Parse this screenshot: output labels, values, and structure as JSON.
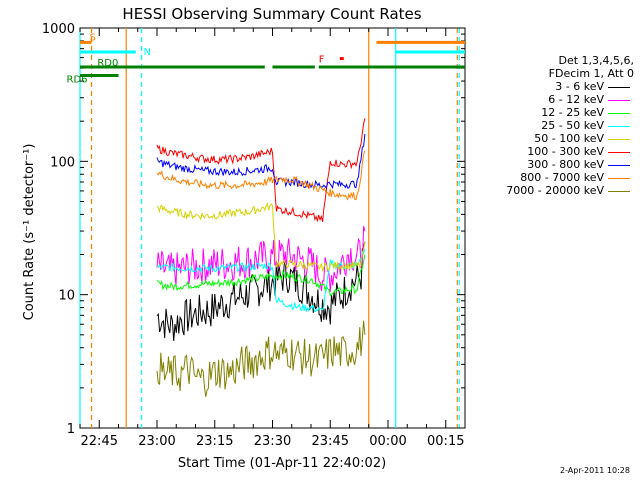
{
  "chart_data": {
    "type": "line",
    "title": "HESSI Observing Summary Count Rates",
    "xlabel": "Start Time (01-Apr-11 22:40:02)",
    "ylabel": "Count Rate (s⁻¹ detector⁻¹)",
    "x_ticks": [
      "22:45",
      "23:00",
      "23:15",
      "23:30",
      "23:45",
      "00:00",
      "00:15"
    ],
    "x_tick_minutes": [
      5,
      20,
      35,
      50,
      65,
      80,
      95
    ],
    "xlim_minutes": [
      0,
      100
    ],
    "y_scale": "log",
    "ylim": [
      1,
      1000
    ],
    "y_ticks": [
      "1",
      "10",
      "100",
      "1000"
    ],
    "y_tick_values": [
      1,
      10,
      100,
      1000
    ],
    "legend_header": [
      "Det 1,3,4,5,6,",
      "FDecim 1, Att 0"
    ],
    "legend_placement": "right, outside plot",
    "series": [
      {
        "name": "3 - 6 keV",
        "color": "#000000",
        "points": [
          [
            20,
            7
          ],
          [
            22,
            6.2
          ],
          [
            24,
            5.8
          ],
          [
            26,
            6.5
          ],
          [
            28,
            6.8
          ],
          [
            30,
            7.1
          ],
          [
            32,
            7.5
          ],
          [
            34,
            7.6
          ],
          [
            36,
            8.2
          ],
          [
            38,
            8.8
          ],
          [
            40,
            9.3
          ],
          [
            42,
            9.8
          ],
          [
            45,
            10.5
          ],
          [
            48,
            11.8
          ],
          [
            50,
            12.5
          ],
          [
            52,
            13.5
          ],
          [
            54,
            14
          ],
          [
            56,
            12.5
          ],
          [
            58,
            11.5
          ],
          [
            60,
            10
          ],
          [
            63,
            8.5
          ],
          [
            65,
            8.2
          ],
          [
            66,
            9
          ],
          [
            68,
            10
          ],
          [
            70,
            12
          ],
          [
            72,
            13
          ],
          [
            73,
            14
          ],
          [
            74,
            25
          ]
        ]
      },
      {
        "name": "6 - 12 keV",
        "color": "#ff00ff",
        "points": [
          [
            20,
            16
          ],
          [
            24,
            15
          ],
          [
            28,
            16
          ],
          [
            32,
            16.5
          ],
          [
            36,
            17
          ],
          [
            40,
            17.5
          ],
          [
            44,
            18
          ],
          [
            48,
            19
          ],
          [
            50,
            19
          ],
          [
            53,
            20
          ],
          [
            56,
            19
          ],
          [
            60,
            17
          ],
          [
            63,
            14
          ],
          [
            65,
            14
          ],
          [
            67,
            16
          ],
          [
            70,
            21
          ],
          [
            72,
            19
          ],
          [
            73,
            20
          ],
          [
            74,
            30
          ]
        ]
      },
      {
        "name": "12 - 25 keV",
        "color": "#00ff00",
        "points": [
          [
            20,
            12
          ],
          [
            24,
            11.5
          ],
          [
            28,
            11.8
          ],
          [
            32,
            12
          ],
          [
            36,
            12.2
          ],
          [
            40,
            12.5
          ],
          [
            44,
            13
          ],
          [
            48,
            13.5
          ],
          [
            50,
            13.8
          ],
          [
            53,
            14
          ],
          [
            56,
            13.5
          ],
          [
            60,
            13
          ],
          [
            63,
            11.5
          ],
          [
            65,
            10.5
          ],
          [
            67,
            10.5
          ],
          [
            70,
            11
          ],
          [
            72,
            11
          ],
          [
            74,
            20
          ]
        ]
      },
      {
        "name": "25 - 50 keV",
        "color": "#00ffff",
        "points": [
          [
            20,
            16
          ],
          [
            24,
            16
          ],
          [
            28,
            15.8
          ],
          [
            32,
            15.8
          ],
          [
            36,
            15.8
          ],
          [
            40,
            16
          ],
          [
            44,
            16.2
          ],
          [
            48,
            16.5
          ],
          [
            50,
            16.5
          ],
          [
            51,
            9
          ],
          [
            54,
            8.5
          ],
          [
            57,
            8
          ],
          [
            60,
            8
          ],
          [
            63,
            7.5
          ],
          [
            65,
            17
          ],
          [
            68,
            16.5
          ],
          [
            72,
            16.5
          ],
          [
            74,
            22
          ]
        ]
      },
      {
        "name": "50 - 100 keV",
        "color": "#d4d400",
        "points": [
          [
            20,
            45
          ],
          [
            24,
            42
          ],
          [
            28,
            40
          ],
          [
            32,
            39
          ],
          [
            36,
            39.5
          ],
          [
            40,
            41
          ],
          [
            44,
            42
          ],
          [
            48,
            45
          ],
          [
            50,
            46
          ],
          [
            51,
            17
          ],
          [
            55,
            17
          ],
          [
            60,
            16.5
          ],
          [
            63,
            16
          ],
          [
            65,
            16.5
          ],
          [
            70,
            16.5
          ],
          [
            73,
            16.5
          ],
          [
            74,
            25
          ]
        ]
      },
      {
        "name": "100 - 300 keV",
        "color": "#ff0000",
        "points": [
          [
            20,
            125
          ],
          [
            24,
            115
          ],
          [
            28,
            110
          ],
          [
            32,
            105
          ],
          [
            36,
            103
          ],
          [
            40,
            104
          ],
          [
            44,
            108
          ],
          [
            48,
            115
          ],
          [
            50,
            120
          ],
          [
            51,
            44
          ],
          [
            55,
            42
          ],
          [
            58,
            40
          ],
          [
            61,
            38
          ],
          [
            63,
            36
          ],
          [
            65,
            100
          ],
          [
            68,
            95
          ],
          [
            72,
            97
          ],
          [
            74,
            210
          ]
        ]
      },
      {
        "name": "300 - 800 keV",
        "color": "#0000ff",
        "points": [
          [
            20,
            100
          ],
          [
            24,
            92
          ],
          [
            28,
            88
          ],
          [
            32,
            85
          ],
          [
            36,
            84
          ],
          [
            40,
            83
          ],
          [
            44,
            85
          ],
          [
            48,
            88
          ],
          [
            50,
            90
          ],
          [
            51,
            70
          ],
          [
            55,
            70
          ],
          [
            60,
            67
          ],
          [
            63,
            66
          ],
          [
            65,
            68
          ],
          [
            68,
            67
          ],
          [
            72,
            68
          ],
          [
            74,
            160
          ]
        ]
      },
      {
        "name": "800 - 7000 keV",
        "color": "#ff8000",
        "points": [
          [
            20,
            82
          ],
          [
            24,
            74
          ],
          [
            28,
            70
          ],
          [
            32,
            67
          ],
          [
            36,
            66
          ],
          [
            40,
            66
          ],
          [
            44,
            67
          ],
          [
            48,
            70
          ],
          [
            50,
            72
          ],
          [
            52,
            74
          ],
          [
            55,
            73
          ],
          [
            58,
            69
          ],
          [
            61,
            64
          ],
          [
            65,
            58
          ],
          [
            68,
            56
          ],
          [
            72,
            55
          ],
          [
            74,
            120
          ]
        ]
      },
      {
        "name": "7000 - 20000 keV",
        "color": "#808000",
        "points": [
          [
            20,
            3
          ],
          [
            22,
            2.5
          ],
          [
            24,
            2.6
          ],
          [
            26,
            2.5
          ],
          [
            28,
            2.8
          ],
          [
            30,
            2.4
          ],
          [
            32,
            2.3
          ],
          [
            34,
            2.5
          ],
          [
            36,
            2.7
          ],
          [
            38,
            2.6
          ],
          [
            40,
            2.7
          ],
          [
            42,
            3
          ],
          [
            44,
            3.1
          ],
          [
            46,
            3.3
          ],
          [
            48,
            3.6
          ],
          [
            50,
            3.8
          ],
          [
            52,
            3.5
          ],
          [
            54,
            3.8
          ],
          [
            56,
            3.6
          ],
          [
            58,
            3.4
          ],
          [
            60,
            3.3
          ],
          [
            62,
            3.2
          ],
          [
            64,
            3.5
          ],
          [
            66,
            3.8
          ],
          [
            68,
            3.6
          ],
          [
            70,
            3.8
          ],
          [
            72,
            4
          ],
          [
            74,
            5
          ]
        ]
      }
    ],
    "flags": [
      {
        "label": "S",
        "color": "#ff8000",
        "segments": [
          [
            0,
            3
          ],
          [
            77,
            100
          ]
        ],
        "level": 780
      },
      {
        "label": "N",
        "color": "#00ffff",
        "segments": [
          [
            0,
            14.5
          ],
          [
            82,
            100
          ]
        ],
        "level": 660
      },
      {
        "label": "F",
        "color": "#ff0000",
        "segments": [
          [
            67.5,
            68.5
          ]
        ],
        "level": 590
      },
      {
        "label": "RD0",
        "color": "#008000",
        "segments": [
          [
            0,
            48
          ],
          [
            50,
            61
          ],
          [
            62,
            100
          ]
        ],
        "level": 510
      },
      {
        "label": "RD6",
        "color": "#008000",
        "segments": [
          [
            0,
            10
          ]
        ],
        "level": 440
      }
    ],
    "vertical_lines": [
      {
        "x": 0,
        "color": "#00ffff",
        "style": "solid"
      },
      {
        "x": 3,
        "color": "#ff8000",
        "style": "dashed"
      },
      {
        "x": 12,
        "color": "#ff8000",
        "style": "solid"
      },
      {
        "x": 16,
        "color": "#00ffff",
        "style": "dashed"
      },
      {
        "x": 75,
        "color": "#ff8000",
        "style": "solid"
      },
      {
        "x": 82,
        "color": "#00ffff",
        "style": "solid"
      },
      {
        "x": 98,
        "color": "#ff8000",
        "style": "dashed"
      },
      {
        "x": 98.5,
        "color": "#00ffff",
        "style": "dashed"
      }
    ]
  },
  "timestamp": "2-Apr-2011 10:28"
}
